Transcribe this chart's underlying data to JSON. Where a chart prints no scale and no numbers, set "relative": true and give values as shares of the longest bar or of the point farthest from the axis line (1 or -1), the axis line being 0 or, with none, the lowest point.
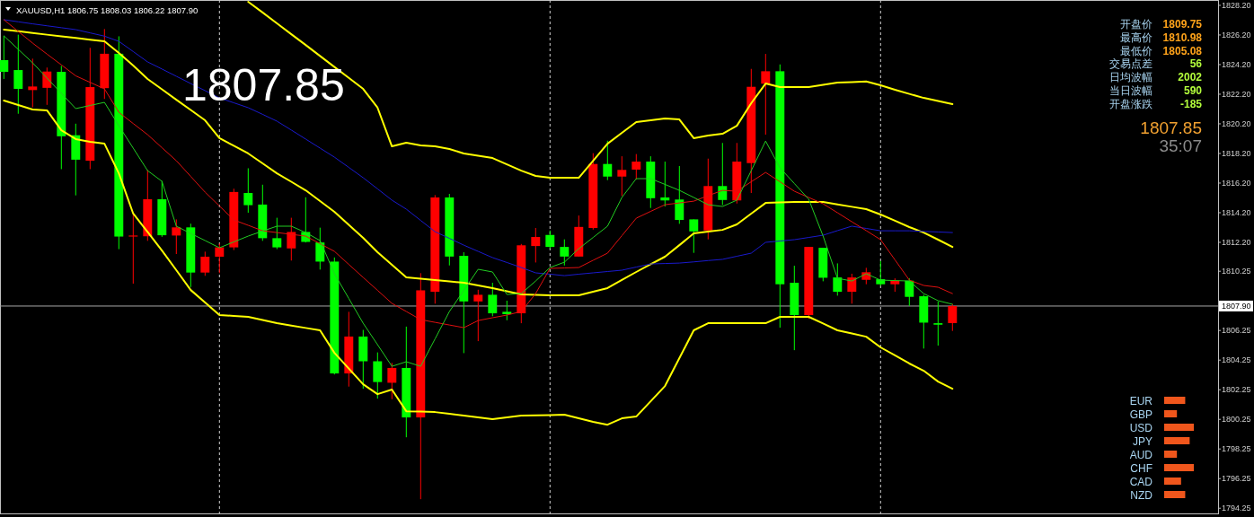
{
  "chart_data": [
    {
      "type": "candlestick",
      "title": "XAUUSD,H1  1806.75 1808.03 1806.22 1807.90",
      "annotations": [
        "1807.85"
      ],
      "categories": [
        null,
        null,
        null,
        null,
        null,
        null,
        null,
        null,
        null,
        null,
        null,
        null,
        null,
        null,
        null,
        null,
        null,
        null,
        null,
        null,
        null,
        null,
        null,
        null,
        null,
        null,
        null,
        null,
        null,
        null,
        null,
        null,
        null,
        null,
        null,
        null,
        null,
        null,
        null,
        null,
        null,
        null,
        null,
        null,
        null,
        null,
        null,
        null,
        null,
        null,
        null,
        null,
        null,
        null,
        null,
        null,
        null,
        null,
        null,
        null,
        null,
        null,
        null,
        null,
        null,
        null,
        null
      ],
      "ylim": [
        1793.9,
        1828.56
      ],
      "yticks": [
        {
          "value": 1828.2,
          "label": "1828.20"
        },
        {
          "value": 1826.2,
          "label": "1826.20"
        },
        {
          "value": 1824.2,
          "label": "1824.20"
        },
        {
          "value": 1822.2,
          "label": "1822.20"
        },
        {
          "value": 1820.2,
          "label": "1820.20"
        },
        {
          "value": 1818.2,
          "label": "1818.20"
        },
        {
          "value": 1816.2,
          "label": "1816.20"
        },
        {
          "value": 1814.2,
          "label": "1814.20"
        },
        {
          "value": 1812.2,
          "label": "1812.20"
        },
        {
          "value": 1810.25,
          "label": "1810.25"
        },
        {
          "value": 1806.25,
          "label": "1806.25"
        },
        {
          "value": 1804.25,
          "label": "1804.25"
        },
        {
          "value": 1802.25,
          "label": "1802.25"
        },
        {
          "value": 1800.25,
          "label": "1800.25"
        },
        {
          "value": 1798.25,
          "label": "1798.25"
        },
        {
          "value": 1796.25,
          "label": "1796.25"
        },
        {
          "value": 1794.25,
          "label": "1794.25"
        }
      ],
      "tick_labels": "y",
      "grid": "x",
      "ohlc": [
        [
          1824.5,
          1826.14,
          1823.23,
          1823.71
        ],
        [
          1823.83,
          1826.22,
          1820.88,
          1822.56
        ],
        [
          1822.48,
          1824.6,
          1821.32,
          1822.72
        ],
        [
          1822.63,
          1824.0,
          1821.48,
          1823.73
        ],
        [
          1823.71,
          1824.11,
          1817.14,
          1819.36
        ],
        [
          1819.43,
          1820.21,
          1815.37,
          1817.78
        ],
        [
          1817.71,
          1825.33,
          1817.14,
          1822.68
        ],
        [
          1822.61,
          1826.6,
          1821.88,
          1824.93
        ],
        [
          1824.93,
          1826.11,
          1811.74,
          1812.59
        ],
        [
          1812.59,
          1814.08,
          1809.41,
          1812.66
        ],
        [
          1812.61,
          1817.09,
          1812.3,
          1815.11
        ],
        [
          1815.11,
          1816.35,
          1812.57,
          1812.68
        ],
        [
          1812.66,
          1813.75,
          1811.41,
          1813.21
        ],
        [
          1813.21,
          1813.46,
          1809.18,
          1810.16
        ],
        [
          1810.16,
          1811.57,
          1809.94,
          1811.23
        ],
        [
          1811.23,
          1812.12,
          1810.12,
          1811.86
        ],
        [
          1811.86,
          1815.82,
          1811.68,
          1815.6
        ],
        [
          1815.53,
          1817.2,
          1814.2,
          1814.71
        ],
        [
          1814.75,
          1816.09,
          1812.3,
          1812.48
        ],
        [
          1812.48,
          1813.86,
          1811.74,
          1811.86
        ],
        [
          1811.79,
          1813.86,
          1810.97,
          1812.9
        ],
        [
          1812.9,
          1815.24,
          1812.19,
          1812.23
        ],
        [
          1812.19,
          1813.19,
          1810.36,
          1810.9
        ],
        [
          1810.9,
          1811.18,
          1803.28,
          1803.35
        ],
        [
          1803.35,
          1807.51,
          1802.46,
          1805.84
        ],
        [
          1805.84,
          1806.29,
          1802.32,
          1804.17
        ],
        [
          1804.17,
          1804.77,
          1801.65,
          1802.77
        ],
        [
          1802.72,
          1804.06,
          1801.61,
          1803.72
        ],
        [
          1803.72,
          1806.51,
          1799.04,
          1800.38
        ],
        [
          1800.38,
          1810.12,
          1794.86,
          1808.96
        ],
        [
          1808.86,
          1815.39,
          1808.06,
          1815.23
        ],
        [
          1815.23,
          1815.47,
          1810.64,
          1811.24
        ],
        [
          1811.29,
          1811.53,
          1804.72,
          1808.21
        ],
        [
          1808.21,
          1809.0,
          1805.53,
          1808.66
        ],
        [
          1808.66,
          1809.47,
          1807.21,
          1807.41
        ],
        [
          1807.51,
          1808.26,
          1806.94,
          1807.35
        ],
        [
          1807.41,
          1812.09,
          1806.74,
          1812.0
        ],
        [
          1811.95,
          1813.17,
          1810.84,
          1812.56
        ],
        [
          1812.7,
          1813.0,
          1811.79,
          1811.89
        ],
        [
          1811.89,
          1812.4,
          1810.64,
          1811.24
        ],
        [
          1811.24,
          1814.01,
          1811.24,
          1813.24
        ],
        [
          1813.17,
          1818.22,
          1813.06,
          1817.49
        ],
        [
          1817.49,
          1819.06,
          1816.4,
          1816.64
        ],
        [
          1816.64,
          1818.01,
          1815.33,
          1817.09
        ],
        [
          1817.11,
          1818.16,
          1816.44,
          1817.65
        ],
        [
          1817.65,
          1818.01,
          1814.52,
          1815.18
        ],
        [
          1815.23,
          1817.65,
          1814.62,
          1815.03
        ],
        [
          1815.09,
          1817.35,
          1813.45,
          1813.71
        ],
        [
          1813.75,
          1813.75,
          1811.49,
          1812.94
        ],
        [
          1813.0,
          1817.85,
          1812.4,
          1816.0
        ],
        [
          1816.0,
          1818.91,
          1814.72,
          1815.06
        ],
        [
          1815.03,
          1818.91,
          1814.82,
          1817.65
        ],
        [
          1817.55,
          1823.91,
          1815.53,
          1822.7
        ],
        [
          1822.91,
          1824.92,
          1819.47,
          1823.75
        ],
        [
          1823.75,
          1824.21,
          1806.44,
          1809.37
        ],
        [
          1809.47,
          1810.62,
          1804.92,
          1807.29
        ],
        [
          1807.29,
          1811.89,
          1807.04,
          1811.89
        ],
        [
          1811.83,
          1811.83,
          1809.57,
          1809.81
        ],
        [
          1809.83,
          1810.78,
          1808.6,
          1808.86
        ],
        [
          1808.86,
          1810.08,
          1808.06,
          1809.83
        ],
        [
          1809.67,
          1810.48,
          1809.37,
          1810.18
        ],
        [
          1809.71,
          1810.94,
          1809.27,
          1809.37
        ],
        [
          1809.37,
          1809.77,
          1808.86,
          1809.61
        ],
        [
          1809.61,
          1809.77,
          1807.91,
          1808.52
        ],
        [
          1808.56,
          1808.66,
          1805.03,
          1806.78
        ],
        [
          1806.74,
          1808.2,
          1805.23,
          1806.64
        ],
        [
          1806.75,
          1808.03,
          1806.22,
          1807.9
        ]
      ],
      "colors": [
        "#00ff00",
        "#00ff00",
        "#ff0000",
        "#ff0000",
        "#00ff00",
        "#00ff00",
        "#ff0000",
        "#ff0000",
        "#00ff00",
        "#ff0000",
        "#ff0000",
        "#00ff00",
        "#ff0000",
        "#00ff00",
        "#ff0000",
        "#ff0000",
        "#ff0000",
        "#00ff00",
        "#00ff00",
        "#00ff00",
        "#ff0000",
        "#00ff00",
        "#00ff00",
        "#00ff00",
        "#ff0000",
        "#00ff00",
        "#00ff00",
        "#ff0000",
        "#00ff00",
        "#ff0000",
        "#ff0000",
        "#00ff00",
        "#00ff00",
        "#ff0000",
        "#00ff00",
        "#00ff00",
        "#ff0000",
        "#ff0000",
        "#00ff00",
        "#00ff00",
        "#ff0000",
        "#ff0000",
        "#00ff00",
        "#ff0000",
        "#ff0000",
        "#00ff00",
        "#00ff00",
        "#00ff00",
        "#00ff00",
        "#ff0000",
        "#00ff00",
        "#ff0000",
        "#ff0000",
        "#ff0000",
        "#00ff00",
        "#00ff00",
        "#ff0000",
        "#00ff00",
        "#00ff00",
        "#ff0000",
        "#ff0000",
        "#00ff00",
        "#ff0000",
        "#00ff00",
        "#00ff00",
        "#00ff00",
        "#ff0000"
      ],
      "series": [
        {
          "type": "line",
          "color": "#ffff00",
          "values": [
            null,
            null,
            null,
            null,
            null,
            null,
            null,
            null,
            null,
            null,
            null,
            null,
            null,
            null,
            null,
            null,
            null,
            1828.44,
            1827.72,
            1826.98,
            1826.25,
            1825.52,
            1824.78,
            1824.04,
            1823.3,
            1822.56,
            1821.29,
            1818.68,
            1818.92,
            1818.74,
            1818.68,
            1818.5,
            1818.2,
            1818.05,
            1817.89,
            1817.46,
            1817.04,
            1816.68,
            1816.56,
            1816.56,
            1816.56,
            1817.71,
            1818.86,
            1819.59,
            1820.32,
            1820.44,
            1820.56,
            1820.5,
            1819.23,
            1819.41,
            1819.53,
            1820.07,
            1821.59,
            1822.92,
            1822.68,
            1822.68,
            1822.68,
            1822.83,
            1822.98,
            1823.02,
            1823.06,
            1822.8,
            1822.5,
            1822.22,
            1821.95,
            1821.74,
            1821.53
          ]
        },
        {
          "type": "line",
          "color": "#ffff00",
          "values": [
            1826.56,
            1826.45,
            1826.33,
            1826.22,
            1826.11,
            1826.0,
            1825.88,
            1825.77,
            1824.98,
            1824.14,
            1823.23,
            1822.53,
            1821.83,
            1821.14,
            1820.44,
            1819.23,
            1818.72,
            1818.2,
            1817.53,
            1816.86,
            1816.29,
            1815.71,
            1814.99,
            1814.26,
            1813.38,
            1812.5,
            1811.53,
            1810.68,
            1809.83,
            1809.74,
            1809.65,
            1809.56,
            1809.47,
            1809.29,
            1809.11,
            1808.9,
            1808.68,
            1808.65,
            1808.62,
            1808.62,
            1808.62,
            1808.87,
            1809.11,
            1809.66,
            1810.2,
            1810.72,
            1811.23,
            1812.01,
            1812.8,
            1812.92,
            1813.04,
            1813.41,
            1814.14,
            1814.86,
            1814.89,
            1814.92,
            1814.92,
            1814.92,
            1814.76,
            1814.6,
            1814.44,
            1814.08,
            1813.66,
            1813.23,
            1812.86,
            1812.38,
            1811.89
          ]
        },
        {
          "type": "line",
          "color": "#ffff00",
          "values": [
            1821.77,
            1821.47,
            1821.17,
            1821.11,
            1819.77,
            1819.17,
            1818.98,
            1818.86,
            1816.86,
            1814.14,
            1812.9,
            1811.65,
            1810.32,
            1808.98,
            1808.14,
            1807.29,
            1807.23,
            1807.17,
            1806.96,
            1806.74,
            1806.58,
            1806.42,
            1806.26,
            1804.74,
            1803.68,
            1802.62,
            1801.95,
            1802.26,
            1800.8,
            1800.77,
            1800.74,
            1800.62,
            1800.5,
            1800.38,
            1800.26,
            1800.38,
            1800.5,
            1800.52,
            1800.54,
            1800.56,
            1800.32,
            1800.08,
            1799.89,
            1800.32,
            1800.44,
            1801.47,
            1802.5,
            1804.38,
            1806.26,
            1806.74,
            1806.74,
            1806.74,
            1806.74,
            1806.74,
            1807.17,
            1807.17,
            1807.17,
            1806.72,
            1806.26,
            1806.05,
            1805.83,
            1805.11,
            1804.57,
            1804.02,
            1803.53,
            1802.8,
            1802.32
          ]
        },
        {
          "type": "line",
          "color": "#1a1acd",
          "values": [
            1827.23,
            1827.09,
            1826.95,
            1826.82,
            1826.69,
            1826.56,
            1826.34,
            1826.12,
            1825.77,
            1825.08,
            1824.38,
            1823.9,
            1823.41,
            1822.92,
            1822.44,
            1821.95,
            1821.62,
            1821.29,
            1820.84,
            1820.38,
            1819.78,
            1819.17,
            1818.56,
            1817.95,
            1817.26,
            1816.56,
            1815.81,
            1815.05,
            1814.44,
            1813.68,
            1812.92,
            1812.47,
            1812.01,
            1811.59,
            1811.17,
            1810.84,
            1810.5,
            1810.14,
            1810.05,
            1809.95,
            1810.05,
            1810.14,
            1810.23,
            1810.32,
            1810.53,
            1810.74,
            1810.77,
            1810.8,
            1810.88,
            1810.97,
            1811.05,
            1811.26,
            1811.47,
            1812.2,
            1812.29,
            1812.38,
            1812.53,
            1812.68,
            1812.99,
            1813.29,
            1813.14,
            1812.98,
            1812.98,
            1812.98,
            1812.94,
            1812.9,
            1812.86
          ]
        },
        {
          "type": "line",
          "color": "#e01010",
          "values": [
            1827.23,
            1826.44,
            1825.65,
            1824.91,
            1824.18,
            1823.44,
            1823.0,
            1822.56,
            1820.98,
            1820.22,
            1819.47,
            1818.59,
            1817.71,
            1816.65,
            1815.59,
            1814.65,
            1813.71,
            1813.35,
            1812.98,
            1812.86,
            1812.74,
            1812.62,
            1812.11,
            1811.59,
            1810.71,
            1809.83,
            1808.96,
            1808.08,
            1807.53,
            1806.98,
            1806.8,
            1806.62,
            1806.44,
            1806.92,
            1807.11,
            1807.29,
            1807.53,
            1808.74,
            1810.44,
            1810.47,
            1810.5,
            1810.99,
            1811.47,
            1812.65,
            1813.83,
            1814.29,
            1814.74,
            1814.86,
            1814.98,
            1815.35,
            1815.71,
            1815.65,
            1816.29,
            1816.92,
            1816.29,
            1815.65,
            1815.23,
            1814.8,
            1814.2,
            1813.59,
            1812.99,
            1812.38,
            1811.02,
            1809.65,
            1809.29,
            1809.17,
            1808.74
          ]
        },
        {
          "type": "line",
          "color": "#22cc22",
          "values": [
            1826.14,
            1825.23,
            1824.32,
            1823.29,
            1822.26,
            1821.23,
            1821.44,
            1821.65,
            1820.07,
            1818.56,
            1817.04,
            1816.32,
            1813.29,
            1812.8,
            1812.32,
            1811.83,
            1812.23,
            1812.62,
            1812.96,
            1813.29,
            1813.29,
            1812.86,
            1812.32,
            1810.08,
            1808.41,
            1806.74,
            1805.29,
            1803.83,
            1804.14,
            1803.83,
            1805.68,
            1807.53,
            1808.96,
            1810.38,
            1810.2,
            1808.68,
            1808.74,
            1809.59,
            1810.5,
            1810.86,
            1811.77,
            1812.53,
            1813.29,
            1815.23,
            1816.5,
            1816.5,
            1816.11,
            1815.71,
            1815.23,
            1814.74,
            1814.62,
            1815.05,
            1817.04,
            1819.04,
            1817.23,
            1816.17,
            1815.11,
            1812.62,
            1809.77,
            1809.59,
            1810.08,
            1809.65,
            1809.62,
            1809.59,
            1808.74,
            1808.26,
            1808.02
          ]
        }
      ],
      "ref_lines": [
        {
          "axis": "y",
          "value": 1807.9,
          "label": "1807.90",
          "color": "#a8a8a8"
        }
      ]
    },
    {
      "type": "other",
      "annotations": [
        "开盘价",
        "1809.75",
        "最高价",
        "1810.98",
        "最低价",
        "1805.08",
        "交易点差",
        "56",
        "日均波幅",
        "2002",
        "当日波幅",
        "590",
        "开盘涨跌",
        "-185",
        "1807.85",
        "35:07"
      ]
    },
    {
      "type": "bar",
      "orientation": "horizontal",
      "relative": true,
      "categories": [
        "EUR",
        "GBP",
        "USD",
        "JPY",
        "AUD",
        "CHF",
        "CAD",
        "NZD"
      ],
      "values": [
        0.71,
        0.43,
        1,
        0.86,
        0.43,
        1,
        0.57,
        0.71
      ],
      "color": "#f0561c"
    }
  ]
}
